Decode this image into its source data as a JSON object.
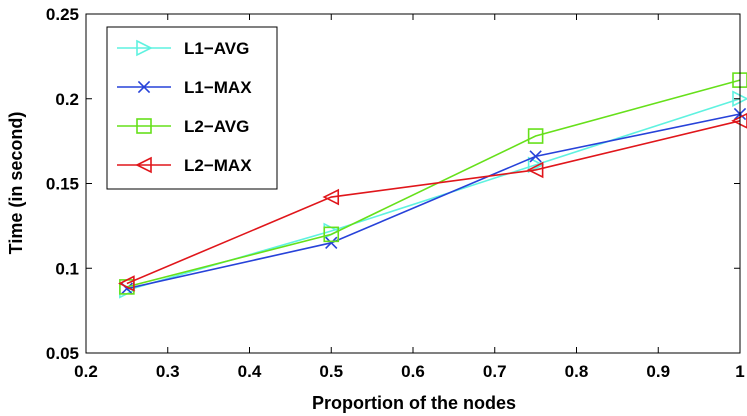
{
  "chart_data": {
    "type": "line",
    "title": "",
    "xlabel": "Proportion of the nodes",
    "ylabel": "Time (in second)",
    "xlim": [
      0.2,
      1
    ],
    "ylim": [
      0.05,
      0.25
    ],
    "xticks": [
      0.2,
      0.3,
      0.4,
      0.5,
      0.6,
      0.7,
      0.8,
      0.9,
      1
    ],
    "xtick_labels": [
      "0.2",
      "0.3",
      "0.4",
      "0.5",
      "0.6",
      "0.7",
      "0.8",
      "0.9",
      "1"
    ],
    "yticks": [
      0.05,
      0.1,
      0.15,
      0.2,
      0.25
    ],
    "ytick_labels": [
      "0.05",
      "0.1",
      "0.15",
      "0.2",
      "0.25"
    ],
    "grid": false,
    "legend_position": "top-left",
    "x": [
      0.25,
      0.5,
      0.75,
      1.0
    ],
    "series": [
      {
        "name": "L1−AVG",
        "values": [
          0.087,
          0.122,
          0.161,
          0.2
        ],
        "color": "#5ff2e0",
        "marker": "triangle-right"
      },
      {
        "name": "L1−MAX",
        "values": [
          0.088,
          0.115,
          0.166,
          0.191
        ],
        "color": "#2742d9",
        "marker": "x"
      },
      {
        "name": "L2−AVG",
        "values": [
          0.089,
          0.12,
          0.178,
          0.211
        ],
        "color": "#66e01a",
        "marker": "square"
      },
      {
        "name": "L2−MAX",
        "values": [
          0.091,
          0.142,
          0.158,
          0.187
        ],
        "color": "#e0161b",
        "marker": "triangle-left"
      }
    ]
  }
}
